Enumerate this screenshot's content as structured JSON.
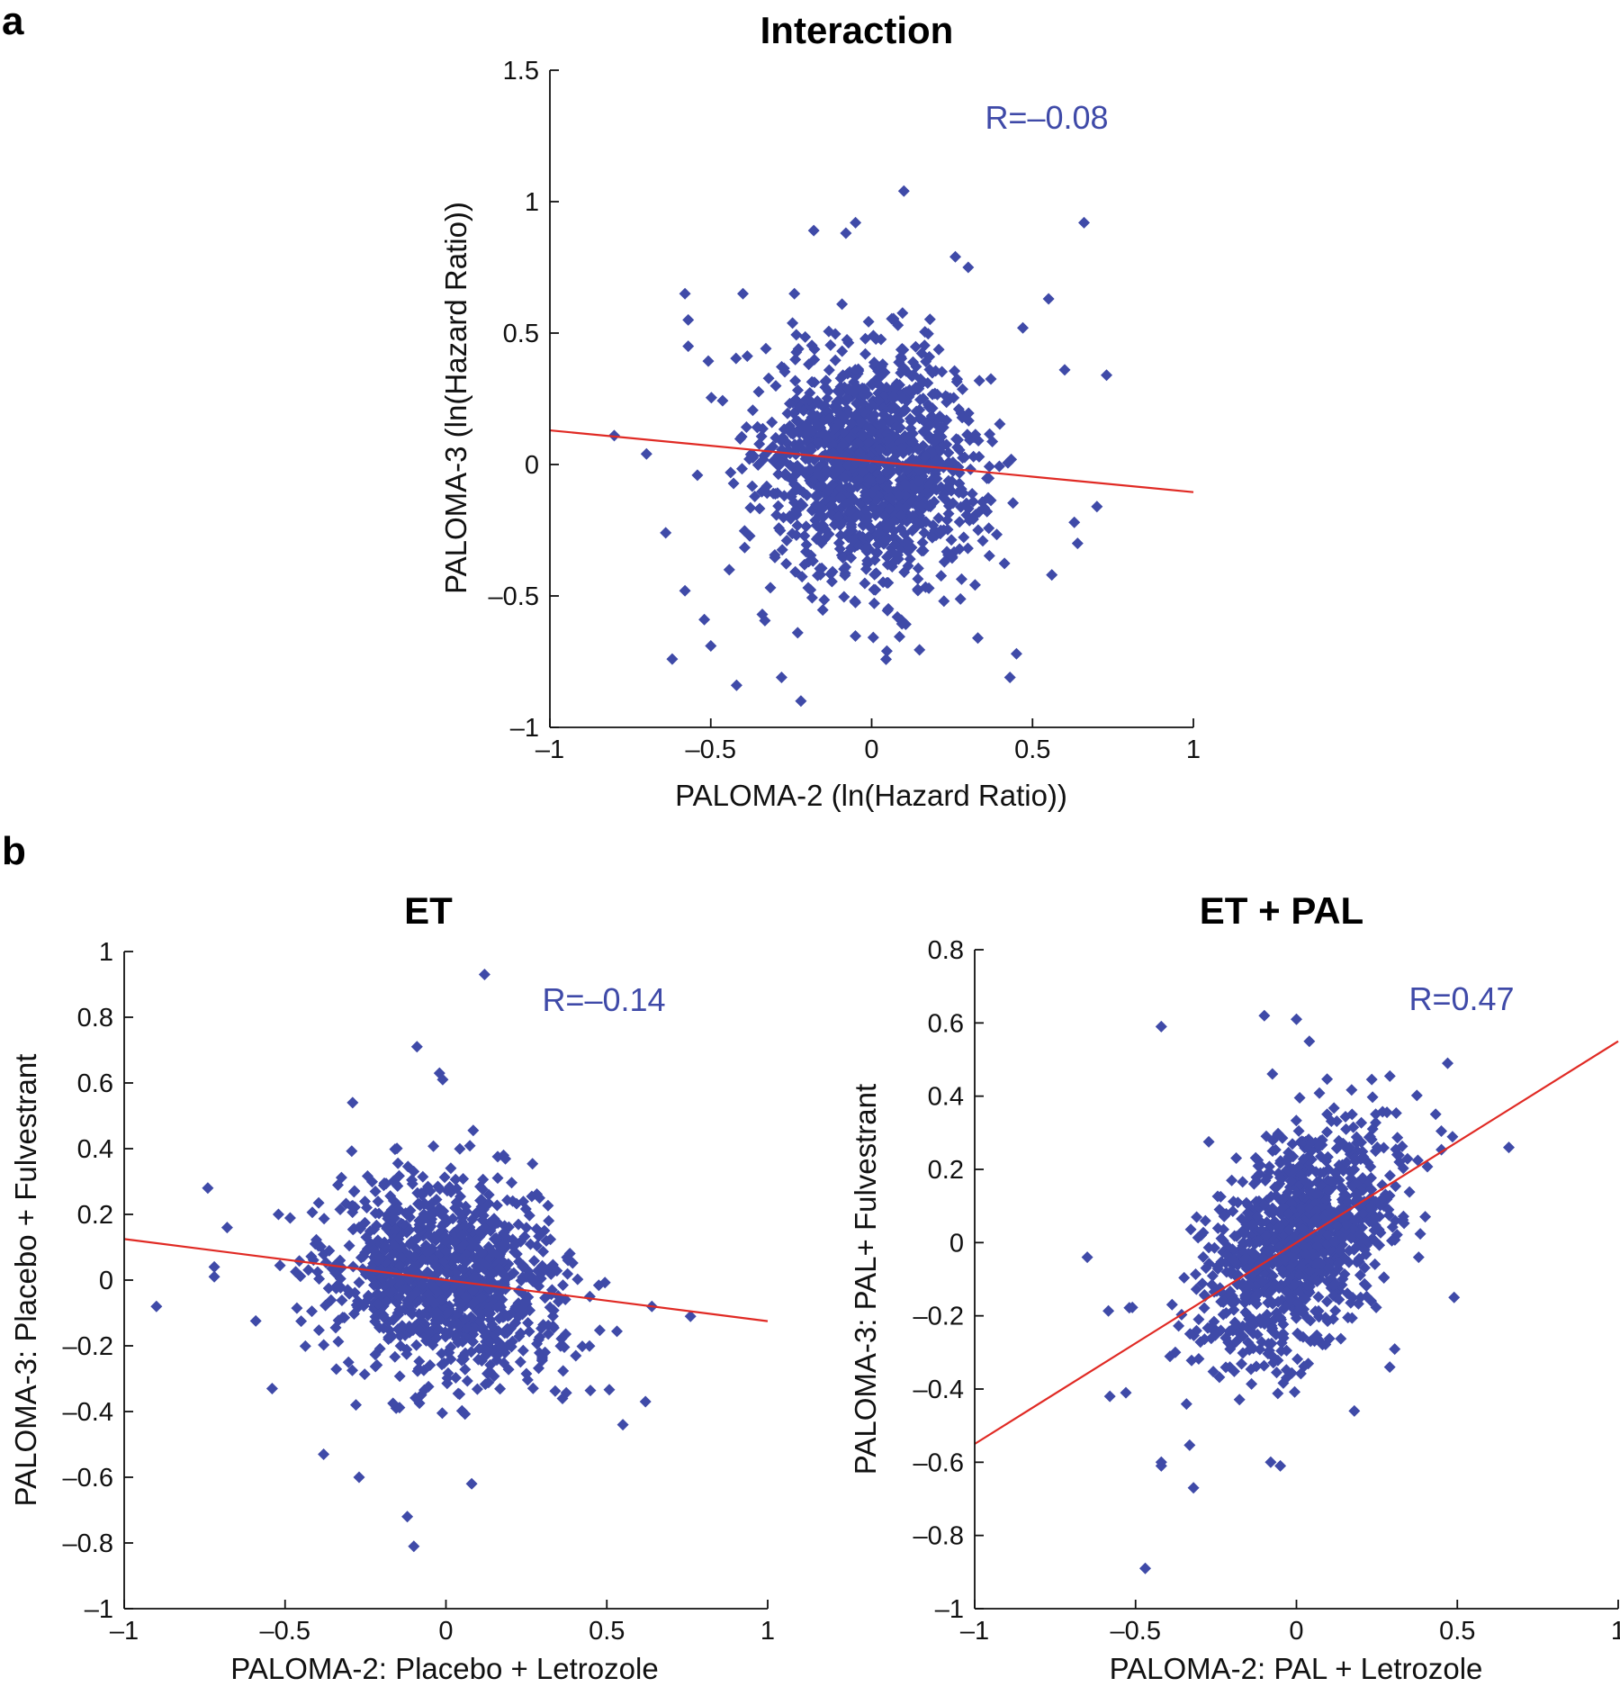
{
  "panel_labels": {
    "a": "a",
    "b": "b"
  },
  "colors": {
    "points": "#3f4aa8",
    "fit_line": "#e02a24",
    "r_text": "#3f4aa8",
    "axis": "#111111"
  },
  "chart_data": [
    {
      "id": "interaction",
      "type": "scatter",
      "title": "Interaction",
      "xlabel": "PALOMA-2 (ln(Hazard Ratio))",
      "ylabel": "PALOMA-3 (ln(Hazard Ratio))",
      "xlim": [
        -1,
        1
      ],
      "ylim": [
        -1,
        1.5
      ],
      "xticks": [
        -1,
        -0.5,
        0,
        0.5,
        1
      ],
      "xtick_labels": [
        "–1",
        "–0.5",
        "0",
        "0.5",
        "1"
      ],
      "yticks": [
        -1,
        -0.5,
        0,
        0.5,
        1,
        1.5
      ],
      "ytick_labels": [
        "–1",
        "–0.5",
        "0",
        "0.5",
        "1",
        "1.5"
      ],
      "r_label": "R=–0.08",
      "correlation": -0.08,
      "cloud": {
        "n": 1300,
        "mean_x": 0.0,
        "mean_y": 0.0,
        "sd_x": 0.17,
        "sd_y": 0.22,
        "r": -0.08
      },
      "fit_line": {
        "x": [
          -1,
          1
        ],
        "y": [
          0.13,
          -0.105
        ]
      },
      "outliers": [
        [
          0.1,
          1.04
        ],
        [
          0.66,
          0.92
        ],
        [
          -0.05,
          0.92
        ],
        [
          -0.08,
          0.88
        ],
        [
          -0.18,
          0.89
        ],
        [
          0.26,
          0.79
        ],
        [
          0.3,
          0.75
        ],
        [
          -0.58,
          0.65
        ],
        [
          -0.4,
          0.65
        ],
        [
          -0.24,
          0.65
        ],
        [
          0.55,
          0.63
        ],
        [
          0.6,
          0.36
        ],
        [
          0.73,
          0.34
        ],
        [
          0.47,
          0.52
        ],
        [
          -0.57,
          0.55
        ],
        [
          -0.57,
          0.45
        ],
        [
          -0.8,
          0.11
        ],
        [
          -0.7,
          0.04
        ],
        [
          -0.64,
          -0.26
        ],
        [
          -0.58,
          -0.48
        ],
        [
          -0.52,
          -0.59
        ],
        [
          -0.5,
          -0.69
        ],
        [
          -0.62,
          -0.74
        ],
        [
          -0.42,
          -0.84
        ],
        [
          -0.28,
          -0.81
        ],
        [
          -0.22,
          -0.9
        ],
        [
          -0.23,
          -0.64
        ],
        [
          0.43,
          -0.81
        ],
        [
          0.45,
          -0.72
        ],
        [
          0.33,
          -0.66
        ],
        [
          0.56,
          -0.42
        ],
        [
          0.64,
          -0.3
        ],
        [
          0.7,
          -0.16
        ],
        [
          0.63,
          -0.22
        ]
      ]
    },
    {
      "id": "et",
      "type": "scatter",
      "title": "ET",
      "xlabel": "PALOMA-2: Placebo + Letrozole",
      "ylabel": "PALOMA-3: Placebo + Fulvestrant",
      "xlim": [
        -1,
        1
      ],
      "ylim": [
        -1,
        1
      ],
      "xticks": [
        -1,
        -0.5,
        0,
        0.5,
        1
      ],
      "xtick_labels": [
        "–1",
        "–0.5",
        "0",
        "0.5",
        "1"
      ],
      "yticks": [
        -1,
        -0.8,
        -0.6,
        -0.4,
        -0.2,
        0,
        0.2,
        0.4,
        0.6,
        0.8,
        1
      ],
      "ytick_labels": [
        "–1",
        "–0.8",
        "–0.6",
        "–0.4",
        "–0.2",
        "0",
        "0.2",
        "0.4",
        "0.6",
        "0.8",
        "1"
      ],
      "r_label": "R=–0.14",
      "correlation": -0.14,
      "cloud": {
        "n": 1100,
        "mean_x": 0.0,
        "mean_y": 0.0,
        "sd_x": 0.18,
        "sd_y": 0.15,
        "r": -0.14
      },
      "fit_line": {
        "x": [
          -1,
          1
        ],
        "y": [
          0.125,
          -0.125
        ]
      },
      "outliers": [
        [
          0.12,
          0.93
        ],
        [
          -0.09,
          0.71
        ],
        [
          -0.02,
          0.63
        ],
        [
          -0.01,
          0.61
        ],
        [
          -0.29,
          0.54
        ],
        [
          -0.74,
          0.28
        ],
        [
          -0.68,
          0.16
        ],
        [
          -0.9,
          -0.08
        ],
        [
          -0.72,
          0.04
        ],
        [
          -0.72,
          0.01
        ],
        [
          -0.12,
          -0.72
        ],
        [
          -0.1,
          -0.81
        ],
        [
          0.08,
          -0.62
        ],
        [
          -0.38,
          -0.53
        ],
        [
          -0.27,
          -0.6
        ],
        [
          0.62,
          -0.37
        ],
        [
          0.76,
          -0.11
        ],
        [
          0.64,
          -0.08
        ],
        [
          0.55,
          -0.44
        ],
        [
          -0.54,
          -0.33
        ]
      ]
    },
    {
      "id": "et_pal",
      "type": "scatter",
      "title": "ET + PAL",
      "xlabel": "PALOMA-2: PAL + Letrozole",
      "ylabel": "PALOMA-3: PAL+ Fulvestrant",
      "xlim": [
        -1,
        1
      ],
      "ylim": [
        -1,
        0.8
      ],
      "xticks": [
        -1,
        -0.5,
        0,
        0.5,
        1
      ],
      "xtick_labels": [
        "–1",
        "–0.5",
        "0",
        "0.5",
        "1"
      ],
      "yticks": [
        -1,
        -0.8,
        -0.6,
        -0.4,
        -0.2,
        0,
        0.2,
        0.4,
        0.6,
        0.8
      ],
      "ytick_labels": [
        "–1",
        "–0.8",
        "–0.6",
        "–0.4",
        "–0.2",
        "0",
        "0.2",
        "0.4",
        "0.6",
        "0.8"
      ],
      "r_label": "R=0.47",
      "correlation": 0.47,
      "cloud": {
        "n": 1100,
        "mean_x": 0.0,
        "mean_y": 0.0,
        "sd_x": 0.15,
        "sd_y": 0.16,
        "r": 0.47
      },
      "fit_line": {
        "x": [
          -1,
          1
        ],
        "y": [
          -0.55,
          0.55
        ]
      },
      "outliers": [
        [
          -0.42,
          0.59
        ],
        [
          -0.1,
          0.62
        ],
        [
          0.0,
          0.61
        ],
        [
          0.04,
          0.55
        ],
        [
          0.47,
          0.49
        ],
        [
          0.66,
          0.26
        ],
        [
          -0.65,
          -0.04
        ],
        [
          -0.58,
          -0.42
        ],
        [
          -0.53,
          -0.41
        ],
        [
          -0.47,
          -0.89
        ],
        [
          -0.42,
          -0.6
        ],
        [
          -0.42,
          -0.61
        ],
        [
          -0.32,
          -0.67
        ],
        [
          -0.08,
          -0.6
        ],
        [
          -0.05,
          -0.61
        ],
        [
          0.18,
          -0.46
        ],
        [
          0.29,
          -0.34
        ],
        [
          0.38,
          -0.04
        ],
        [
          0.49,
          -0.15
        ]
      ]
    }
  ]
}
